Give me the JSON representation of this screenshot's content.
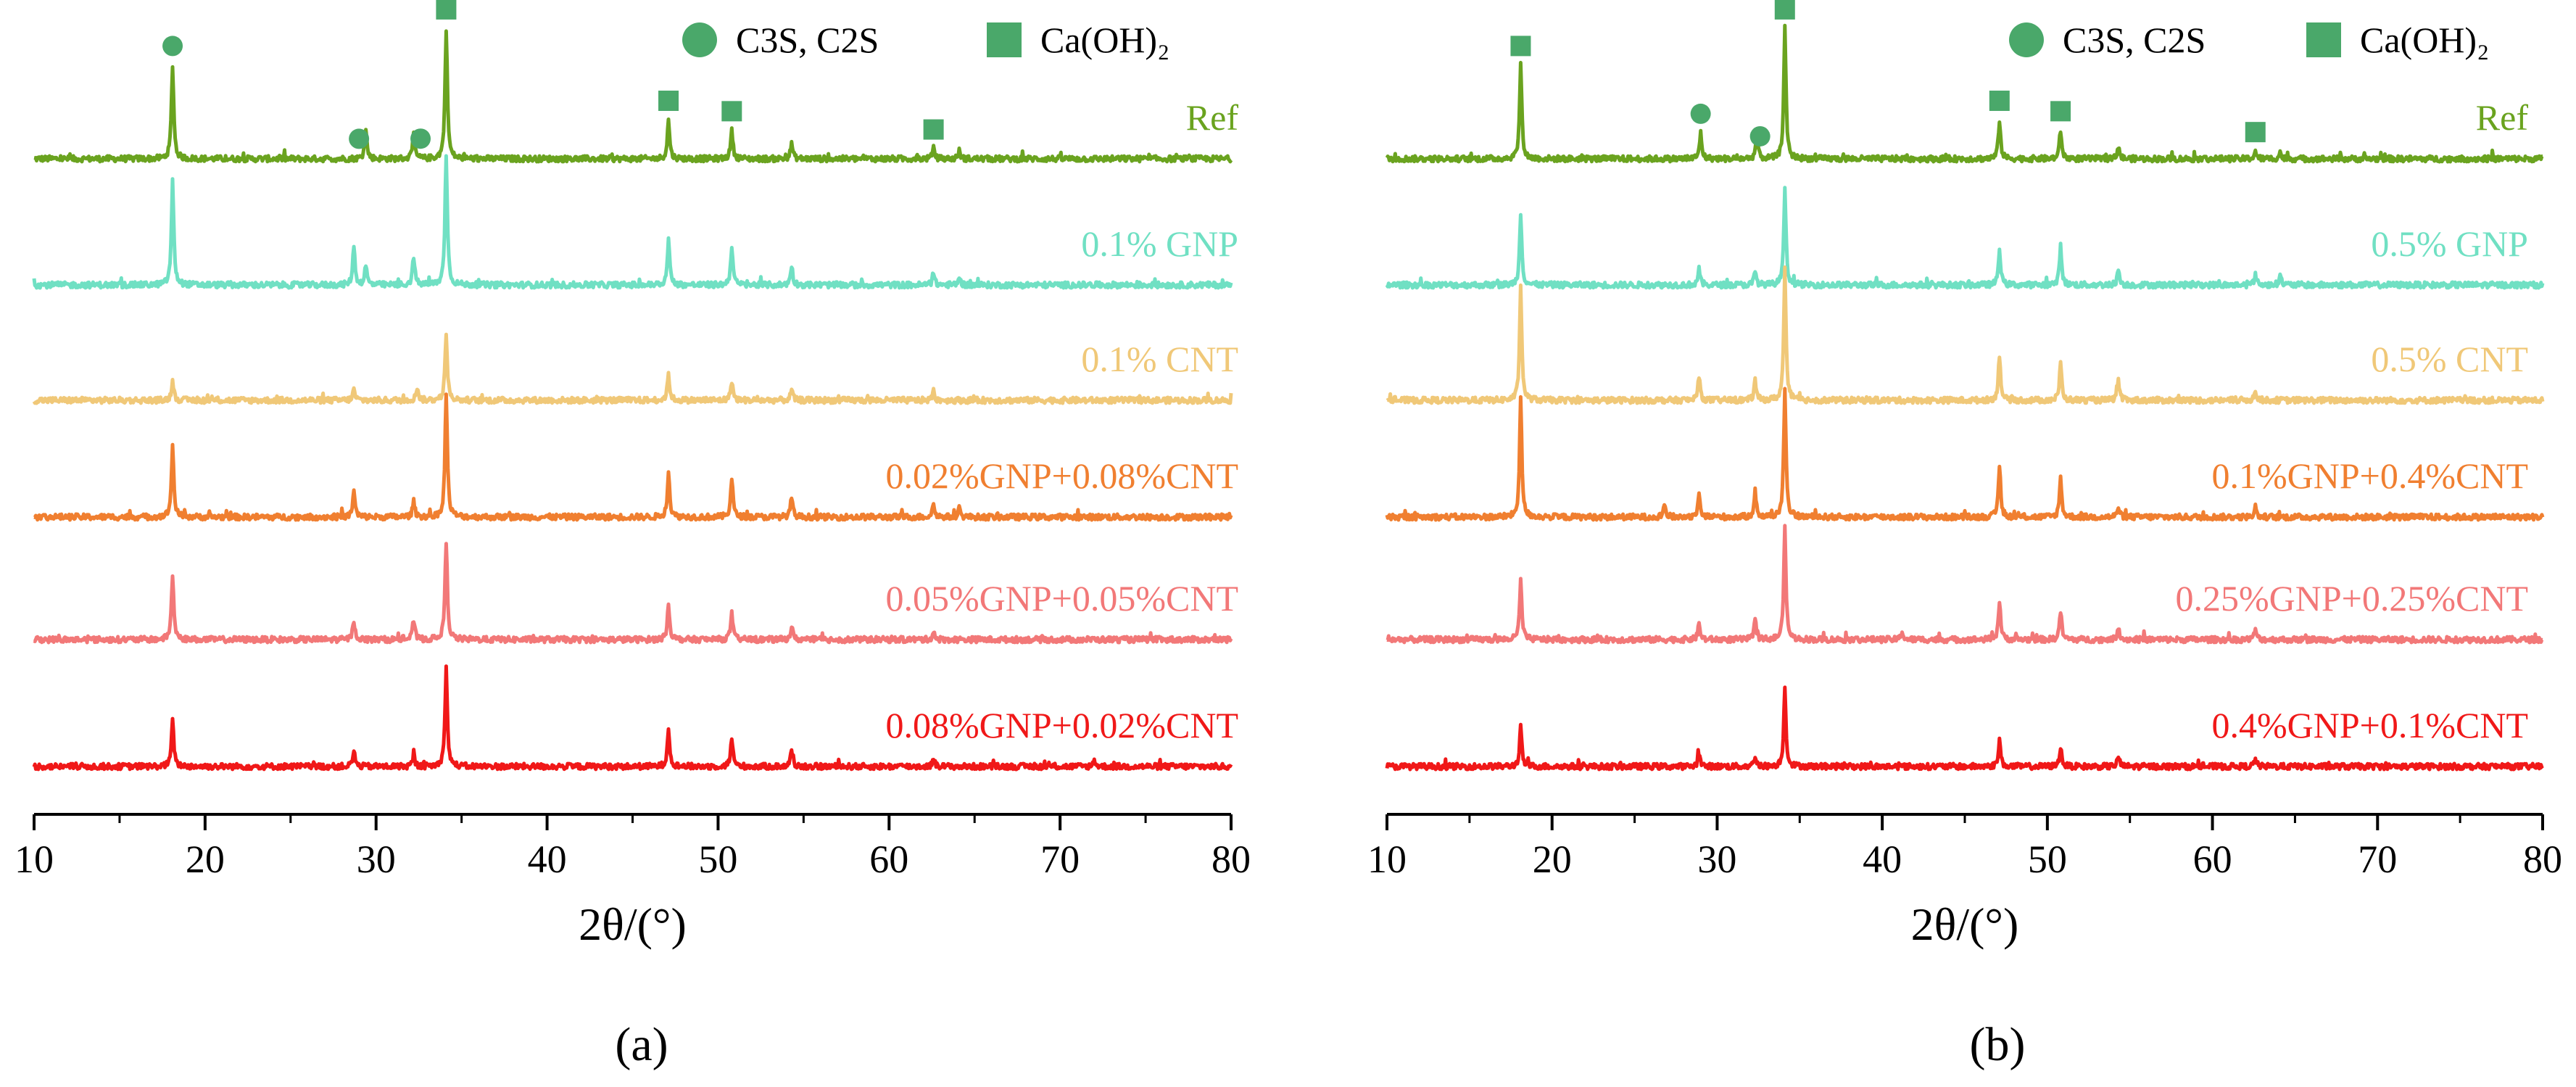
{
  "figure": {
    "panel_captions": [
      "(a)",
      "(b)"
    ],
    "legend": [
      {
        "symbol": "circle",
        "label": "C3S, C2S"
      },
      {
        "symbol": "square",
        "label": "Ca(OH)₂"
      }
    ],
    "marker_color": "#4aa86a"
  },
  "chart_data": [
    {
      "type": "line",
      "panel": "a",
      "title": "",
      "xlabel": "2θ/(°)",
      "ylabel": "",
      "xlim": [
        10,
        80
      ],
      "xticks": [
        "10",
        "20",
        "30",
        "40",
        "50",
        "60",
        "70",
        "80"
      ],
      "y_axis": "stacked offset traces, no numeric scale",
      "grid": false,
      "series": [
        {
          "name": "Ref",
          "color": "#6aa31f",
          "peaks": [
            [
              18.1,
              0.72
            ],
            [
              29.4,
              0.22
            ],
            [
              32.2,
              0.18
            ],
            [
              34.1,
              1.0
            ],
            [
              47.1,
              0.3
            ],
            [
              50.8,
              0.22
            ],
            [
              54.3,
              0.12
            ],
            [
              62.6,
              0.08
            ],
            [
              64.1,
              0.06
            ]
          ]
        },
        {
          "name": "0.1% GNP",
          "color": "#70e0c3",
          "peaks": [
            [
              18.1,
              0.8
            ],
            [
              28.7,
              0.3
            ],
            [
              29.4,
              0.15
            ],
            [
              32.2,
              0.22
            ],
            [
              34.1,
              1.0
            ],
            [
              47.1,
              0.35
            ],
            [
              50.8,
              0.3
            ],
            [
              54.3,
              0.15
            ],
            [
              62.6,
              0.08
            ],
            [
              64.1,
              0.06
            ]
          ]
        },
        {
          "name": "0.1% CNT",
          "color": "#f0c878",
          "peaks": [
            [
              18.1,
              0.15
            ],
            [
              28.7,
              0.08
            ],
            [
              32.4,
              0.1
            ],
            [
              34.1,
              0.5
            ],
            [
              47.1,
              0.2
            ],
            [
              50.8,
              0.15
            ],
            [
              54.3,
              0.08
            ],
            [
              62.6,
              0.06
            ]
          ]
        },
        {
          "name": "0.02%GNP+0.08%CNT",
          "color": "#f07f30",
          "peaks": [
            [
              18.1,
              0.55
            ],
            [
              28.7,
              0.2
            ],
            [
              32.2,
              0.12
            ],
            [
              34.1,
              0.95
            ],
            [
              47.1,
              0.35
            ],
            [
              50.8,
              0.3
            ],
            [
              54.3,
              0.15
            ],
            [
              62.6,
              0.1
            ],
            [
              64.1,
              0.06
            ]
          ]
        },
        {
          "name": "0.05%GNP+0.05%CNT",
          "color": "#f27878",
          "peaks": [
            [
              18.1,
              0.5
            ],
            [
              28.7,
              0.15
            ],
            [
              32.2,
              0.15
            ],
            [
              34.1,
              0.75
            ],
            [
              47.1,
              0.28
            ],
            [
              50.8,
              0.2
            ],
            [
              54.3,
              0.1
            ],
            [
              62.6,
              0.06
            ]
          ]
        },
        {
          "name": "0.08%GNP+0.02%CNT",
          "color": "#f01818",
          "peaks": [
            [
              18.1,
              0.35
            ],
            [
              28.7,
              0.12
            ],
            [
              32.2,
              0.08
            ],
            [
              34.1,
              0.75
            ],
            [
              47.1,
              0.3
            ],
            [
              50.8,
              0.22
            ],
            [
              54.3,
              0.12
            ],
            [
              62.6,
              0.06
            ],
            [
              72.0,
              0.05
            ]
          ]
        }
      ],
      "annotations": [
        {
          "marker": "circle",
          "x": 18.1
        },
        {
          "marker": "circle",
          "x": 29.0
        },
        {
          "marker": "circle",
          "x": 32.6
        },
        {
          "marker": "square",
          "x": 34.1
        },
        {
          "marker": "square",
          "x": 47.1
        },
        {
          "marker": "square",
          "x": 50.8
        },
        {
          "marker": "square",
          "x": 62.6
        }
      ]
    },
    {
      "type": "line",
      "panel": "b",
      "title": "",
      "xlabel": "2θ/(°)",
      "ylabel": "",
      "xlim": [
        10,
        80
      ],
      "xticks": [
        "10",
        "20",
        "30",
        "40",
        "50",
        "60",
        "70",
        "80"
      ],
      "y_axis": "stacked offset traces, no numeric scale",
      "grid": false,
      "series": [
        {
          "name": "Ref",
          "color": "#6aa31f",
          "peaks": [
            [
              18.1,
              0.72
            ],
            [
              29.0,
              0.2
            ],
            [
              32.4,
              0.18
            ],
            [
              34.1,
              1.0
            ],
            [
              47.1,
              0.3
            ],
            [
              50.8,
              0.22
            ],
            [
              54.3,
              0.1
            ],
            [
              62.6,
              0.06
            ],
            [
              64.1,
              0.05
            ]
          ]
        },
        {
          "name": "0.5% GNP",
          "color": "#70e0c3",
          "peaks": [
            [
              18.1,
              0.55
            ],
            [
              28.9,
              0.12
            ],
            [
              32.3,
              0.1
            ],
            [
              34.1,
              0.75
            ],
            [
              47.1,
              0.28
            ],
            [
              50.8,
              0.3
            ],
            [
              54.3,
              0.12
            ],
            [
              62.6,
              0.08
            ],
            [
              64.1,
              0.08
            ]
          ]
        },
        {
          "name": "0.5% CNT",
          "color": "#f0c878",
          "peaks": [
            [
              18.1,
              0.85
            ],
            [
              28.9,
              0.18
            ],
            [
              32.3,
              0.15
            ],
            [
              34.1,
              1.0
            ],
            [
              47.1,
              0.35
            ],
            [
              50.8,
              0.28
            ],
            [
              54.3,
              0.15
            ],
            [
              62.6,
              0.08
            ]
          ]
        },
        {
          "name": "0.1%GNP+0.4%CNT",
          "color": "#f07f30",
          "peaks": [
            [
              18.1,
              0.9
            ],
            [
              26.8,
              0.1
            ],
            [
              28.9,
              0.2
            ],
            [
              32.3,
              0.2
            ],
            [
              34.1,
              1.0
            ],
            [
              47.1,
              0.4
            ],
            [
              50.8,
              0.3
            ],
            [
              54.3,
              0.08
            ],
            [
              62.6,
              0.08
            ]
          ]
        },
        {
          "name": "0.25%GNP+0.25%CNT",
          "color": "#f27878",
          "peaks": [
            [
              18.1,
              0.45
            ],
            [
              28.9,
              0.12
            ],
            [
              32.3,
              0.15
            ],
            [
              34.1,
              0.85
            ],
            [
              41.2,
              0.06
            ],
            [
              47.1,
              0.3
            ],
            [
              50.8,
              0.22
            ],
            [
              54.3,
              0.1
            ],
            [
              62.6,
              0.08
            ]
          ]
        },
        {
          "name": "0.4%GNP+0.1%CNT",
          "color": "#f01818",
          "peaks": [
            [
              18.1,
              0.3
            ],
            [
              28.9,
              0.1
            ],
            [
              32.3,
              0.08
            ],
            [
              34.1,
              0.6
            ],
            [
              47.1,
              0.2
            ],
            [
              50.8,
              0.15
            ],
            [
              54.3,
              0.08
            ],
            [
              62.6,
              0.06
            ]
          ]
        }
      ],
      "annotations": [
        {
          "marker": "square",
          "x": 18.1
        },
        {
          "marker": "circle",
          "x": 29.0
        },
        {
          "marker": "circle",
          "x": 32.6
        },
        {
          "marker": "square",
          "x": 34.1
        },
        {
          "marker": "square",
          "x": 47.1
        },
        {
          "marker": "square",
          "x": 50.8
        },
        {
          "marker": "square",
          "x": 62.6
        }
      ]
    }
  ]
}
